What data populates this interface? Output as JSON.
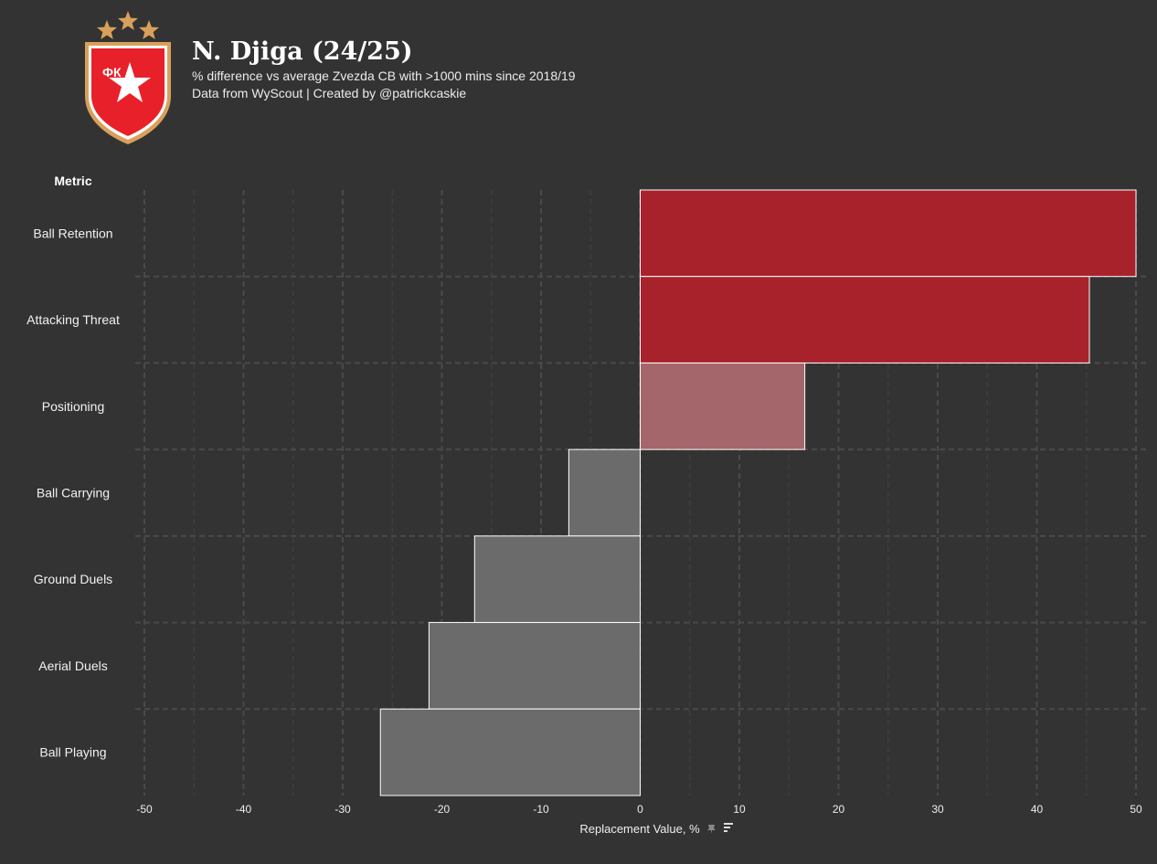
{
  "header": {
    "title": "N. Djiga (24/25)",
    "subtitle": "% difference vs average Zvezda CB with >1000 mins since 2018/19",
    "credit": "Data from WyScout | Created by @patrickcaskie"
  },
  "logo": {
    "icon": "crvena-zvezda-crest-icon",
    "text": "ФК",
    "star_color": "#d9a05b",
    "shield_color": "#e8202a"
  },
  "colors": {
    "background": "#333333",
    "strong_positive": "#a8222b",
    "mild_positive": "#a5666b",
    "negative": "#6b6b6b",
    "grid": "#4a4a4a"
  },
  "chart_data": {
    "type": "bar",
    "orientation": "horizontal",
    "column_header": "Metric",
    "categories": [
      "Ball Retention",
      "Attacking Threat",
      "Positioning",
      "Ball Carrying",
      "Ground Duels",
      "Aerial Duels",
      "Ball Playing"
    ],
    "values": [
      50,
      45.3,
      16.6,
      -7.2,
      -16.7,
      -21.3,
      -26.2
    ],
    "xlabel": "Replacement Value, %",
    "xlim": [
      -50,
      50
    ],
    "xticks": [
      -50,
      -40,
      -30,
      -20,
      -10,
      0,
      10,
      20,
      30,
      40,
      50
    ],
    "grid": true,
    "legend": "none"
  }
}
